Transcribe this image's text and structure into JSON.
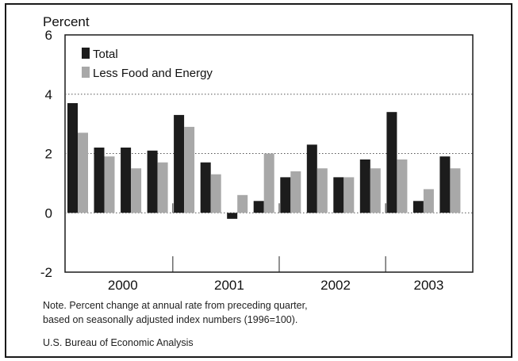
{
  "chart_data": {
    "type": "bar",
    "ylabel": "Percent",
    "ylim": [
      -2,
      6
    ],
    "yticks": [
      -2,
      0,
      2,
      4,
      6
    ],
    "grid": true,
    "legend_placement": "top-left",
    "year_labels": [
      "2000",
      "2001",
      "2002",
      "2003"
    ],
    "quarters_per_year": 4,
    "series": [
      {
        "name": "Total",
        "color": "#1c1c1c",
        "values": [
          3.7,
          2.2,
          2.2,
          2.1,
          3.3,
          1.7,
          -0.2,
          0.4,
          1.2,
          2.3,
          1.2,
          1.8,
          3.4,
          0.4,
          1.9
        ]
      },
      {
        "name": "Less Food and Energy",
        "color": "#a8a8a8",
        "values": [
          2.7,
          1.9,
          1.5,
          1.7,
          2.9,
          1.3,
          0.6,
          2.0,
          1.4,
          1.5,
          1.2,
          1.5,
          1.8,
          0.8,
          1.5
        ]
      }
    ]
  },
  "notes": {
    "line1": "Note. Percent change at annual rate from preceding quarter,",
    "line2": "based on seasonally adjusted index numbers (1996=100).",
    "source": "U.S. Bureau of Economic Analysis"
  }
}
